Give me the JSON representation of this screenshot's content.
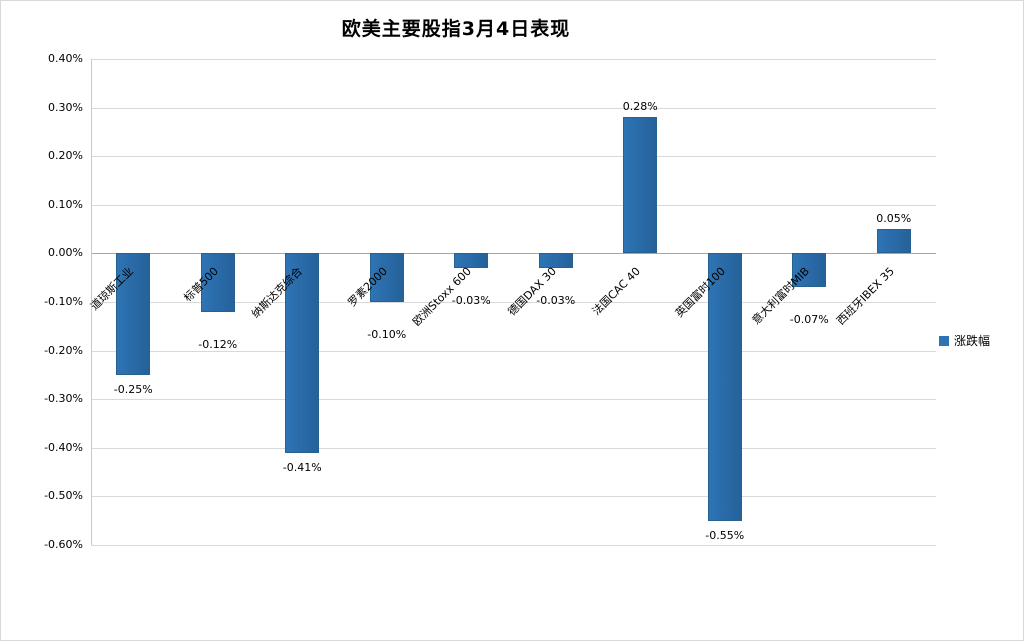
{
  "chart_data": {
    "type": "bar",
    "title": "欧美主要股指3月4日表现",
    "categories": [
      "道琼斯工业",
      "标普500",
      "纳斯达克综合",
      "罗素2000",
      "欧洲Stoxx 600",
      "德国DAX 30",
      "法国CAC 40",
      "英国富时100",
      "意大利富时MIB",
      "西班牙IBEX 35"
    ],
    "values": [
      -0.25,
      -0.12,
      -0.41,
      -0.1,
      -0.03,
      -0.03,
      0.28,
      -0.55,
      -0.07,
      0.05
    ],
    "data_labels": [
      "-0.25%",
      "-0.12%",
      "-0.41%",
      "-0.10%",
      "-0.03%",
      "-0.03%",
      "0.28%",
      "-0.55%",
      "-0.07%",
      "0.05%"
    ],
    "ylim": [
      -0.6,
      0.4
    ],
    "ytick_step": 0.1,
    "ytick_labels": [
      "0.40%",
      "0.30%",
      "0.20%",
      "0.10%",
      "0.00%",
      "-0.10%",
      "-0.20%",
      "-0.30%",
      "-0.40%",
      "-0.50%",
      "-0.60%"
    ],
    "xlabel": "",
    "ylabel": "",
    "legend": [
      "涨跌幅"
    ],
    "legend_position": "right",
    "grid": true,
    "colors": {
      "bar_fill": "#2e74b5",
      "bar_border": "#27628f",
      "gridline": "#d9d9d9",
      "zero_axis": "#a6a6a6"
    }
  }
}
